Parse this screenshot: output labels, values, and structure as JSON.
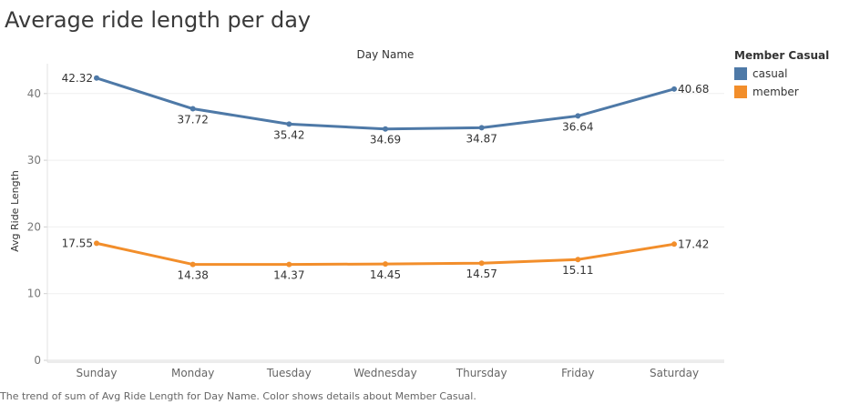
{
  "title": "Average ride length per day",
  "caption": "The trend of sum of Avg Ride Length for Day Name.  Color shows details about Member Casual.",
  "legend": {
    "title": "Member Casual",
    "items": [
      {
        "label": "casual",
        "color": "#4e79a7"
      },
      {
        "label": "member",
        "color": "#f28e2b"
      }
    ]
  },
  "chart_data": {
    "type": "line",
    "title": "Average ride length per day",
    "xlabel": "Day Name",
    "ylabel": "Avg Ride Length",
    "categories": [
      "Sunday",
      "Monday",
      "Tuesday",
      "Wednesday",
      "Thursday",
      "Friday",
      "Saturday"
    ],
    "ylim": [
      0,
      45
    ],
    "yticks": [
      0,
      10,
      20,
      30,
      40
    ],
    "legend_position": "right",
    "grid": true,
    "series": [
      {
        "name": "casual",
        "color": "#4e79a7",
        "values": [
          42.32,
          37.72,
          35.42,
          34.69,
          34.87,
          36.64,
          40.68
        ]
      },
      {
        "name": "member",
        "color": "#f28e2b",
        "values": [
          17.55,
          14.38,
          14.37,
          14.45,
          14.57,
          15.11,
          17.42
        ]
      }
    ]
  }
}
